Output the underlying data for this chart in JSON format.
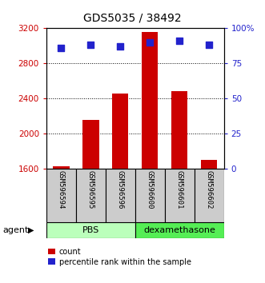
{
  "title": "GDS5035 / 38492",
  "samples": [
    "GSM596594",
    "GSM596595",
    "GSM596596",
    "GSM596600",
    "GSM596601",
    "GSM596602"
  ],
  "counts": [
    1620,
    2155,
    2455,
    3155,
    2480,
    1700
  ],
  "percentile_ranks": [
    86,
    88,
    87,
    90,
    91,
    88
  ],
  "ylim_left": [
    1600,
    3200
  ],
  "ylim_right": [
    0,
    100
  ],
  "yticks_left": [
    1600,
    2000,
    2400,
    2800,
    3200
  ],
  "yticks_right": [
    0,
    25,
    50,
    75,
    100
  ],
  "ytick_labels_right": [
    "0",
    "25",
    "50",
    "75",
    "100%"
  ],
  "bar_color": "#cc0000",
  "dot_color": "#2222cc",
  "group_labels": [
    "PBS",
    "dexamethasone"
  ],
  "group_colors_light": [
    "#bbffbb",
    "#55ee55"
  ],
  "agent_label": "agent",
  "legend_count_label": "count",
  "legend_pct_label": "percentile rank within the sample",
  "bar_width": 0.55,
  "tick_label_color_left": "#cc0000",
  "tick_label_color_right": "#2222cc",
  "sample_box_color": "#cccccc"
}
